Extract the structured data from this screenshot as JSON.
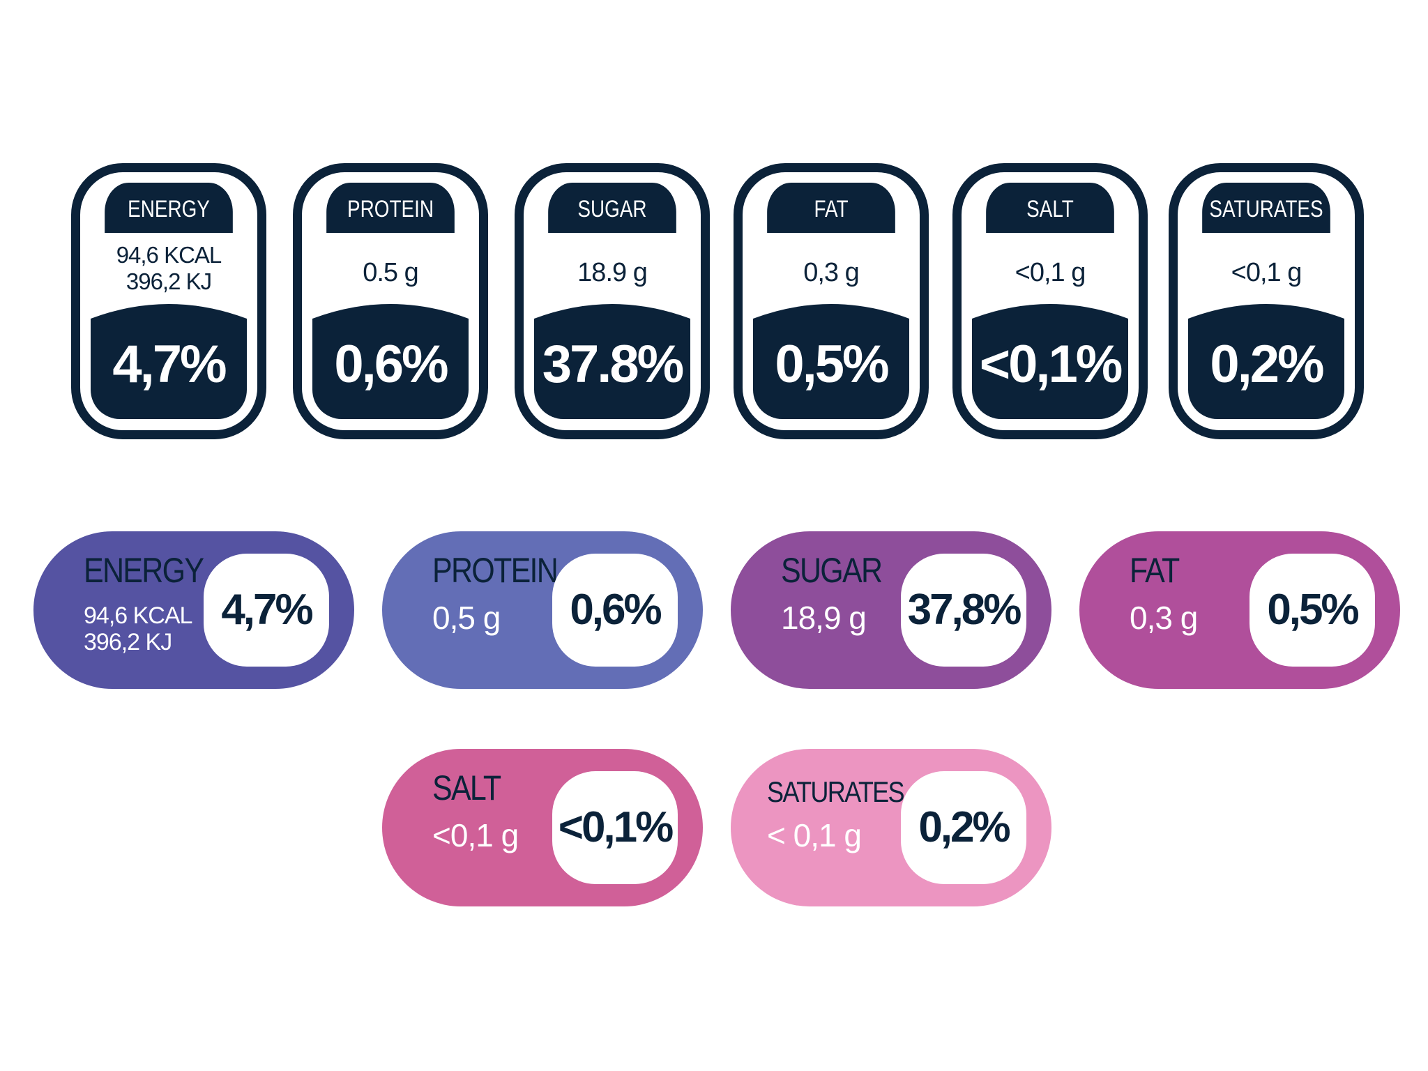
{
  "colors": {
    "navy": "#0b2239",
    "white": "#ffffff",
    "pill_energy": "#5553a2",
    "pill_protein": "#636eb6",
    "pill_sugar": "#8e4e9b",
    "pill_fat": "#b04f9b",
    "pill_salt": "#d06098",
    "pill_saturates": "#ec95c1"
  },
  "dark_tiles": [
    {
      "name": "ENERGY",
      "amount_line1": "94,6 KCAL",
      "amount_line2": "396,2 KJ",
      "percent": "4,7%"
    },
    {
      "name": "PROTEIN",
      "amount": "0.5 g",
      "percent": "0,6%"
    },
    {
      "name": "SUGAR",
      "amount": "18.9 g",
      "percent": "37.8%"
    },
    {
      "name": "FAT",
      "amount": "0,3 g",
      "percent": "0,5%"
    },
    {
      "name": "SALT",
      "amount": "<0,1 g",
      "percent": "<0,1%"
    },
    {
      "name": "SATURATES",
      "amount": "<0,1 g",
      "percent": "0,2%"
    }
  ],
  "pill_badges": [
    {
      "name": "ENERGY",
      "amount_line1": "94,6 KCAL",
      "amount_line2": "396,2 KJ",
      "percent": "4,7%"
    },
    {
      "name": "PROTEIN",
      "amount": "0,5 g",
      "percent": "0,6%"
    },
    {
      "name": "SUGAR",
      "amount": "18,9 g",
      "percent": "37,8%"
    },
    {
      "name": "FAT",
      "amount": "0,3 g",
      "percent": "0,5%"
    },
    {
      "name": "SALT",
      "amount": "<0,1 g",
      "percent": "<0,1%"
    },
    {
      "name": "SATURATES",
      "amount": "< 0,1 g",
      "percent": "0,2%"
    }
  ]
}
